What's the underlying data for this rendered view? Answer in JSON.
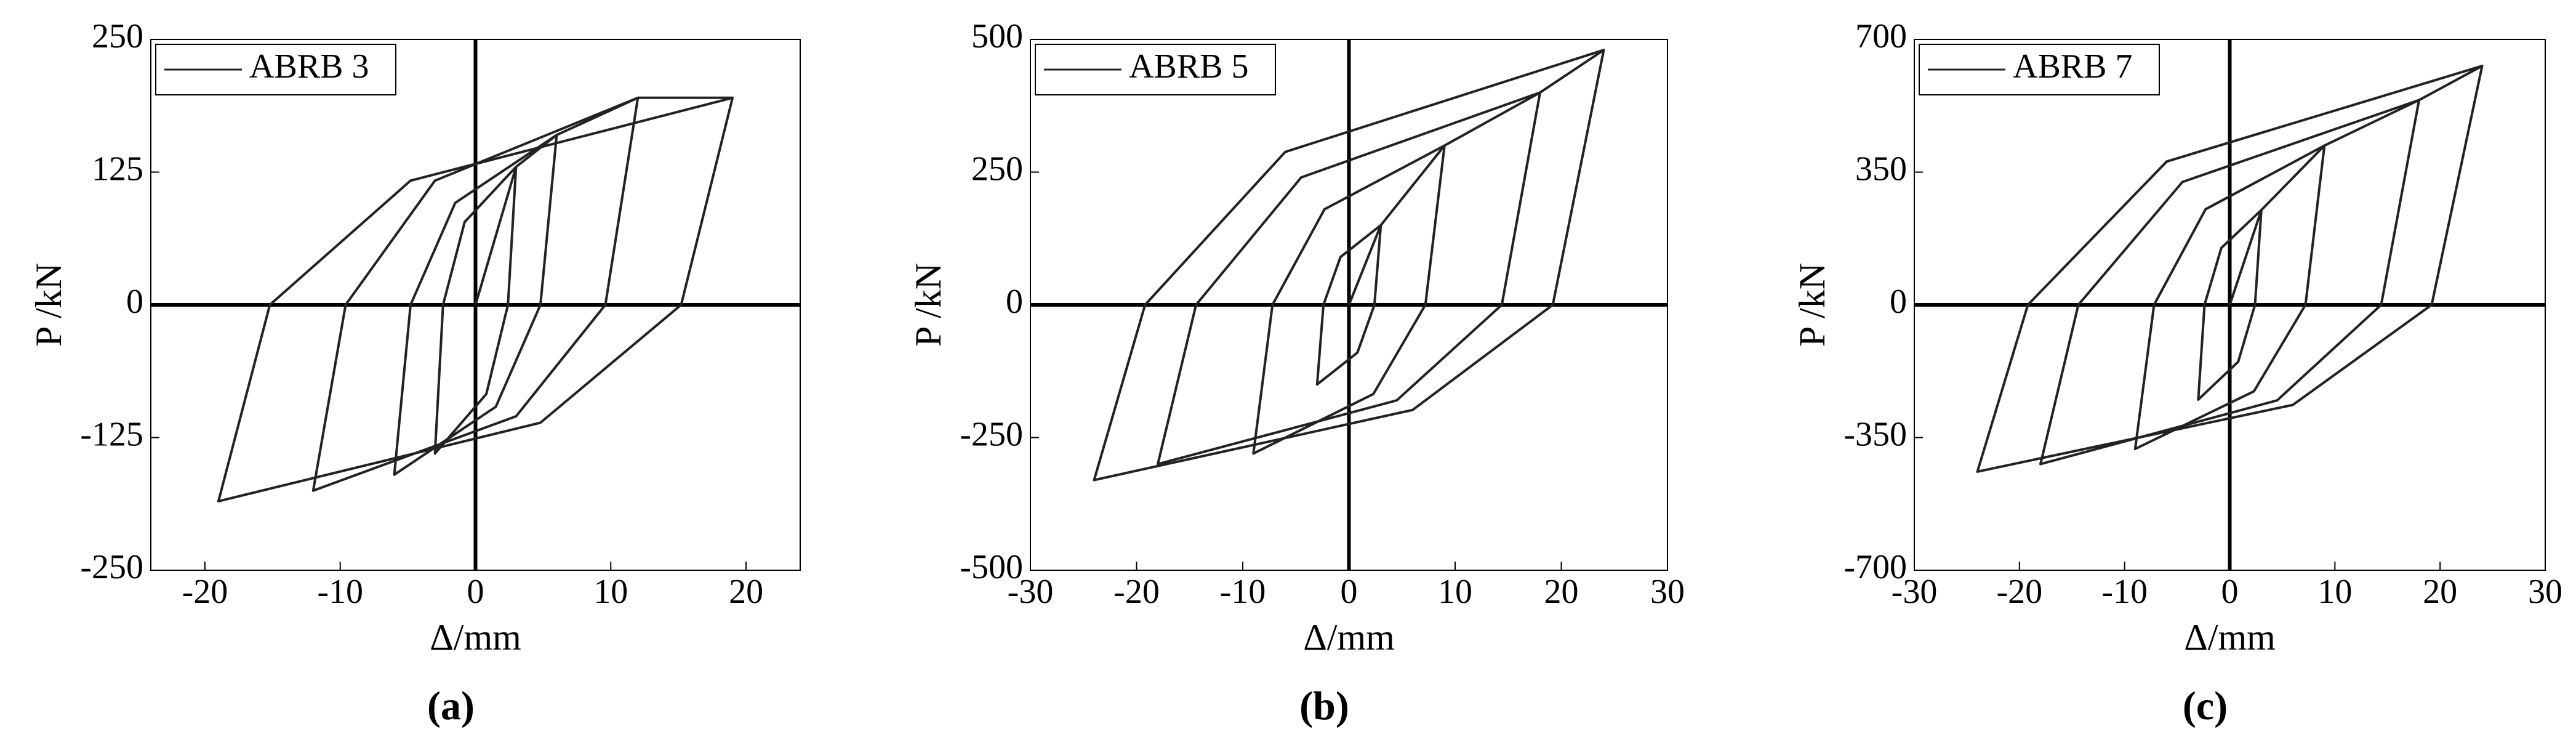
{
  "chart_data": [
    {
      "type": "line",
      "caption": "(a)",
      "x_label": "Δ/mm",
      "y_label": "P /kN",
      "legend": "upper left",
      "xlim": [
        -24,
        24
      ],
      "xticks": [
        -20,
        -10,
        0,
        10,
        20
      ],
      "ylim": [
        -250,
        250
      ],
      "yticks": [
        -250,
        -125,
        0,
        125,
        250
      ],
      "x": [
        0,
        3,
        2.4,
        0.8,
        -3,
        -2.4,
        -0.8,
        3,
        6,
        4.8,
        1.5,
        -6,
        -4.8,
        -1.5,
        6,
        12,
        9.6,
        3,
        -12,
        -9.6,
        -3,
        12,
        19,
        15.2,
        4.8,
        -19,
        -15.2,
        -4.8,
        19
      ],
      "series": [
        {
          "name": "ABRB 3",
          "color": "#222222",
          "values": [
            0,
            130,
            0,
            -84,
            -140,
            0,
            78,
            130,
            160,
            0,
            -96,
            -160,
            0,
            96,
            160,
            195,
            0,
            -105,
            -175,
            0,
            117,
            195,
            195,
            0,
            -111,
            -185,
            0,
            117,
            195
          ]
        }
      ]
    },
    {
      "type": "line",
      "caption": "(b)",
      "x_label": "Δ/mm",
      "y_label": "P /kN",
      "legend": "upper left",
      "xlim": [
        -30,
        30
      ],
      "xticks": [
        -30,
        -20,
        -10,
        0,
        10,
        20,
        30
      ],
      "ylim": [
        -500,
        500
      ],
      "yticks": [
        -500,
        -250,
        0,
        250,
        500
      ],
      "x": [
        0,
        3,
        2.4,
        0.8,
        -3,
        -2.4,
        -0.8,
        3,
        9,
        7.2,
        2.3,
        -9,
        -7.2,
        -2.3,
        9,
        18,
        14.4,
        4.5,
        -18,
        -14.4,
        -4.5,
        18,
        24,
        19.2,
        6,
        -24,
        -19.2,
        -6,
        24
      ],
      "series": [
        {
          "name": "ABRB 5",
          "color": "#222222",
          "values": [
            0,
            150,
            0,
            -90,
            -150,
            0,
            90,
            150,
            300,
            0,
            -168,
            -280,
            0,
            180,
            300,
            400,
            0,
            -180,
            -300,
            0,
            240,
            400,
            480,
            0,
            -198,
            -330,
            0,
            288,
            480
          ]
        }
      ]
    },
    {
      "type": "line",
      "caption": "(c)",
      "x_label": "Δ/mm",
      "y_label": "P /kN",
      "legend": "upper left",
      "xlim": [
        -30,
        30
      ],
      "xticks": [
        -30,
        -20,
        -10,
        0,
        10,
        20,
        30
      ],
      "ylim": [
        -700,
        700
      ],
      "yticks": [
        -700,
        -350,
        0,
        350,
        700
      ],
      "x": [
        0,
        3,
        2.4,
        0.8,
        -3,
        -2.4,
        -0.8,
        3,
        9,
        7.2,
        2.3,
        -9,
        -7.2,
        -2.3,
        9,
        18,
        14.4,
        4.5,
        -18,
        -14.4,
        -4.5,
        18,
        24,
        19.2,
        6,
        -24,
        -19.2,
        -6,
        24
      ],
      "series": [
        {
          "name": "ABRB 7",
          "color": "#222222",
          "values": [
            0,
            250,
            0,
            -150,
            -250,
            0,
            150,
            250,
            420,
            0,
            -228,
            -380,
            0,
            252,
            420,
            540,
            0,
            -252,
            -420,
            0,
            324,
            540,
            630,
            0,
            -264,
            -440,
            0,
            378,
            630
          ]
        }
      ]
    }
  ]
}
